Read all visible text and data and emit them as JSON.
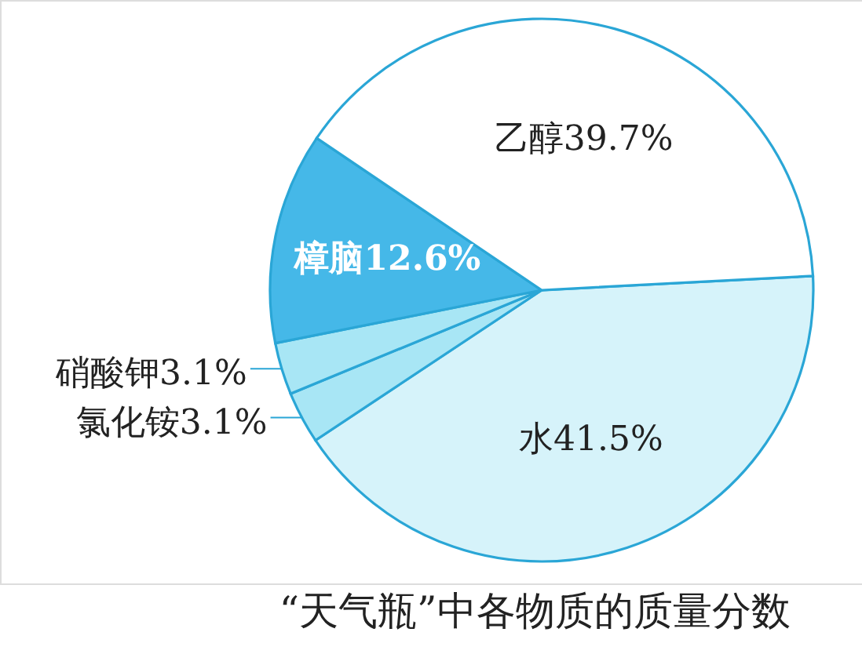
{
  "chart_data": {
    "type": "pie",
    "title": "“天气瓶”中各物质的质量分数",
    "categories": [
      "水",
      "氯化铵",
      "硝酸钾",
      "樟脑",
      "乙醇"
    ],
    "values": [
      41.5,
      3.1,
      3.1,
      12.6,
      39.7
    ],
    "colors": [
      "#d6f3fa",
      "#a8e6f5",
      "#a8e6f5",
      "#45b8e8",
      "#ffffff"
    ],
    "value_labels": [
      "41.5%",
      "3.1%",
      "3.1%",
      "12.6%",
      "39.7%"
    ]
  }
}
